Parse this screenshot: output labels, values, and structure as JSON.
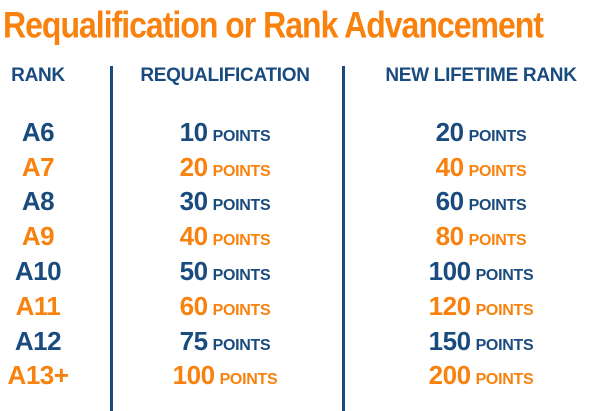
{
  "title": "Requalification or Rank Advancement",
  "colors": {
    "navy": "#1A4B7E",
    "orange": "#F8820D"
  },
  "table": {
    "headers": [
      "RANK",
      "REQUALIFICATION",
      "NEW LIFETIME RANK"
    ],
    "rows": [
      {
        "rank": "A6",
        "requalification": {
          "value": "10",
          "unit": "POINTS"
        },
        "new_lifetime_rank": {
          "value": "20",
          "unit": "POINTS"
        }
      },
      {
        "rank": "A7",
        "requalification": {
          "value": "20",
          "unit": "POINTS"
        },
        "new_lifetime_rank": {
          "value": "40",
          "unit": "POINTS"
        }
      },
      {
        "rank": "A8",
        "requalification": {
          "value": "30",
          "unit": "POINTS"
        },
        "new_lifetime_rank": {
          "value": "60",
          "unit": "POINTS"
        }
      },
      {
        "rank": "A9",
        "requalification": {
          "value": "40",
          "unit": "POINTS"
        },
        "new_lifetime_rank": {
          "value": "80",
          "unit": "POINTS"
        }
      },
      {
        "rank": "A10",
        "requalification": {
          "value": "50",
          "unit": "POINTS"
        },
        "new_lifetime_rank": {
          "value": "100",
          "unit": "POINTS"
        }
      },
      {
        "rank": "A11",
        "requalification": {
          "value": "60",
          "unit": "POINTS"
        },
        "new_lifetime_rank": {
          "value": "120",
          "unit": "POINTS"
        }
      },
      {
        "rank": "A12",
        "requalification": {
          "value": "75",
          "unit": "POINTS"
        },
        "new_lifetime_rank": {
          "value": "150",
          "unit": "POINTS"
        }
      },
      {
        "rank": "A13+",
        "requalification": {
          "value": "100",
          "unit": "POINTS"
        },
        "new_lifetime_rank": {
          "value": "200",
          "unit": "POINTS"
        }
      }
    ]
  },
  "chart_data": {
    "type": "table",
    "title": "Requalification or Rank Advancement",
    "columns": [
      "RANK",
      "REQUALIFICATION",
      "NEW LIFETIME RANK"
    ],
    "rows": [
      [
        "A6",
        "10 POINTS",
        "20 POINTS"
      ],
      [
        "A7",
        "20 POINTS",
        "40 POINTS"
      ],
      [
        "A8",
        "30 POINTS",
        "60 POINTS"
      ],
      [
        "A9",
        "40 POINTS",
        "80 POINTS"
      ],
      [
        "A10",
        "50 POINTS",
        "100 POINTS"
      ],
      [
        "A11",
        "60 POINTS",
        "120 POINTS"
      ],
      [
        "A12",
        "75 POINTS",
        "150 POINTS"
      ],
      [
        "A13+",
        "100 POINTS",
        "200 POINTS"
      ]
    ],
    "layout": {
      "row_color_alternation": [
        "navy",
        "orange"
      ],
      "grid": "vertical-dividers-only"
    }
  }
}
